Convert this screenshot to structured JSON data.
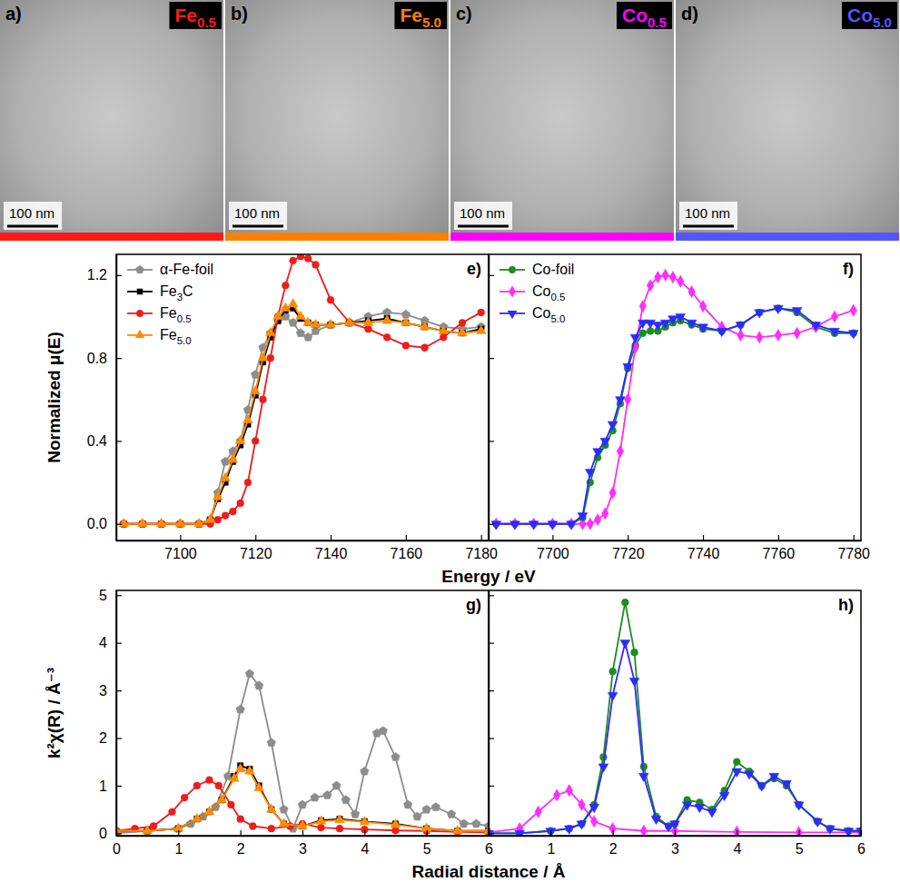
{
  "images": [
    {
      "panel": "a)",
      "label": "Fe0.5",
      "color": "#ff1a1a",
      "scale_bar": "100 nm"
    },
    {
      "panel": "b)",
      "label": "Fe5.0",
      "color": "#ff8000",
      "scale_bar": "100 nm"
    },
    {
      "panel": "c)",
      "label": "Co0.5",
      "color": "#ff00ff",
      "scale_bar": "100 nm"
    },
    {
      "panel": "d)",
      "label": "Co5.0",
      "color": "#5555ff",
      "scale_bar": "100 nm"
    }
  ],
  "chart_data": [
    {
      "type": "line",
      "title": "e)",
      "xlabel": "Energy / eV",
      "ylabel": "Normalized μ(E)",
      "xlim": [
        7083,
        7182
      ],
      "xticks": [
        7100,
        7120,
        7140,
        7160,
        7180
      ],
      "ylim": [
        -0.08,
        1.3
      ],
      "yticks": [
        {
          "value": 0,
          "label": "0.0"
        },
        0.4,
        0.8,
        1.2
      ],
      "grid": false,
      "legend": "upper left",
      "series": [
        {
          "name": "α-Fe-foil",
          "color": "#8c8c8c",
          "marker": "pentagon",
          "line_style": "solid",
          "x": [
            7085,
            7090,
            7095,
            7100,
            7105,
            7108,
            7110,
            7112,
            7114,
            7116,
            7118,
            7120,
            7122,
            7124,
            7126,
            7128,
            7130,
            7132,
            7134,
            7136,
            7140,
            7145,
            7150,
            7155,
            7160,
            7165,
            7170,
            7175,
            7180
          ],
          "values": [
            0,
            0,
            0,
            0,
            0,
            0.02,
            0.15,
            0.3,
            0.35,
            0.4,
            0.55,
            0.72,
            0.85,
            0.92,
            0.98,
            1.0,
            0.97,
            0.92,
            0.9,
            0.93,
            0.96,
            0.97,
            1.0,
            1.02,
            1.01,
            0.98,
            0.95,
            0.94,
            0.95
          ]
        },
        {
          "name": "Fe3C",
          "color": "#000000",
          "marker": "square",
          "line_style": "solid",
          "x": [
            7085,
            7090,
            7095,
            7100,
            7105,
            7108,
            7110,
            7112,
            7114,
            7116,
            7118,
            7120,
            7122,
            7124,
            7126,
            7128,
            7130,
            7132,
            7134,
            7136,
            7140,
            7145,
            7150,
            7155,
            7160,
            7165,
            7170,
            7175,
            7180
          ],
          "values": [
            0,
            0,
            0,
            0,
            0,
            0.02,
            0.12,
            0.2,
            0.3,
            0.38,
            0.48,
            0.62,
            0.78,
            0.9,
            0.98,
            1.03,
            1.04,
            0.99,
            0.97,
            0.96,
            0.96,
            0.97,
            0.98,
            0.99,
            0.97,
            0.95,
            0.93,
            0.92,
            0.94
          ]
        },
        {
          "name": "Fe0.5",
          "color": "#ee1c1c",
          "marker": "circle",
          "line_style": "solid",
          "x": [
            7085,
            7090,
            7095,
            7100,
            7105,
            7108,
            7110,
            7112,
            7114,
            7116,
            7118,
            7120,
            7122,
            7124,
            7126,
            7128,
            7130,
            7132,
            7134,
            7136,
            7140,
            7145,
            7150,
            7155,
            7160,
            7165,
            7170,
            7175,
            7180
          ],
          "values": [
            0,
            0,
            0,
            0,
            0,
            0,
            0.02,
            0.04,
            0.06,
            0.1,
            0.2,
            0.4,
            0.6,
            0.8,
            1.0,
            1.15,
            1.27,
            1.29,
            1.28,
            1.25,
            1.08,
            0.97,
            0.94,
            0.9,
            0.86,
            0.85,
            0.9,
            0.97,
            1.02
          ]
        },
        {
          "name": "Fe5.0",
          "color": "#ff8c00",
          "marker": "triangle",
          "line_style": "solid",
          "x": [
            7085,
            7090,
            7095,
            7100,
            7105,
            7108,
            7110,
            7112,
            7114,
            7116,
            7118,
            7120,
            7122,
            7124,
            7126,
            7128,
            7130,
            7132,
            7134,
            7136,
            7140,
            7145,
            7150,
            7155,
            7160,
            7165,
            7170,
            7175,
            7180
          ],
          "values": [
            0,
            0,
            0,
            0,
            0,
            0.02,
            0.13,
            0.22,
            0.31,
            0.4,
            0.5,
            0.64,
            0.8,
            0.92,
            1.0,
            1.04,
            1.06,
            1.0,
            0.97,
            0.96,
            0.96,
            0.97,
            0.97,
            0.98,
            0.97,
            0.95,
            0.93,
            0.92,
            0.93
          ]
        }
      ]
    },
    {
      "type": "line",
      "title": "f)",
      "xlim": [
        7683,
        7782
      ],
      "xticks": [
        7700,
        7720,
        7740,
        7760,
        7780
      ],
      "ylim": [
        -0.08,
        1.3
      ],
      "yticks": [
        {
          "value": 0,
          "label": "0.0"
        },
        0.4,
        0.8,
        1.2
      ],
      "grid": false,
      "legend": "upper left",
      "tick_labels": "x",
      "series": [
        {
          "name": "Co-foil",
          "color": "#1e8c1e",
          "marker": "circle",
          "line_style": "solid",
          "x": [
            7685,
            7690,
            7695,
            7700,
            7705,
            7708,
            7710,
            7712,
            7714,
            7716,
            7718,
            7720,
            7722,
            7724,
            7726,
            7728,
            7730,
            7732,
            7734,
            7737,
            7740,
            7745,
            7750,
            7755,
            7760,
            7765,
            7770,
            7775,
            7780
          ],
          "values": [
            0,
            0,
            0,
            0,
            0,
            0.03,
            0.2,
            0.32,
            0.38,
            0.45,
            0.58,
            0.75,
            0.86,
            0.92,
            0.93,
            0.93,
            0.95,
            0.97,
            0.98,
            0.96,
            0.94,
            0.93,
            0.96,
            1.02,
            1.04,
            1.02,
            0.95,
            0.92,
            0.92
          ]
        },
        {
          "name": "Co0.5",
          "color": "#ff2bff",
          "marker": "diamond",
          "line_style": "solid",
          "x": [
            7685,
            7690,
            7695,
            7700,
            7705,
            7708,
            7710,
            7712,
            7714,
            7716,
            7718,
            7720,
            7722,
            7724,
            7726,
            7728,
            7730,
            7732,
            7734,
            7737,
            7740,
            7745,
            7750,
            7755,
            7760,
            7765,
            7770,
            7775,
            7780
          ],
          "values": [
            0,
            0,
            0,
            0,
            0,
            0,
            0,
            0.02,
            0.05,
            0.15,
            0.35,
            0.6,
            0.85,
            1.05,
            1.15,
            1.19,
            1.2,
            1.19,
            1.17,
            1.12,
            1.05,
            0.95,
            0.91,
            0.9,
            0.91,
            0.92,
            0.95,
            1.0,
            1.03
          ]
        },
        {
          "name": "Co5.0",
          "color": "#2b2bff",
          "marker": "triangle-down",
          "line_style": "solid",
          "x": [
            7685,
            7690,
            7695,
            7700,
            7705,
            7708,
            7710,
            7712,
            7714,
            7716,
            7718,
            7720,
            7722,
            7724,
            7726,
            7728,
            7730,
            7732,
            7734,
            7737,
            7740,
            7745,
            7750,
            7755,
            7760,
            7765,
            7770,
            7775,
            7780
          ],
          "values": [
            0,
            0,
            0,
            0,
            0,
            0.04,
            0.25,
            0.35,
            0.4,
            0.48,
            0.6,
            0.76,
            0.9,
            0.97,
            0.97,
            0.96,
            0.97,
            0.99,
            1.0,
            0.97,
            0.95,
            0.93,
            0.96,
            1.02,
            1.04,
            1.03,
            0.96,
            0.93,
            0.92
          ]
        }
      ]
    },
    {
      "type": "line",
      "title": "g)",
      "xlabel": "Radial distance / Å",
      "ylabel": "k²χ(R) / Å⁻³",
      "xlim": [
        0,
        6
      ],
      "xticks": [
        0,
        1,
        2,
        3,
        4,
        5,
        6
      ],
      "ylim": [
        -0.05,
        5.1
      ],
      "yticks": [
        0,
        1,
        2,
        3,
        4,
        5
      ],
      "grid": false,
      "series": [
        {
          "color": "#8c8c8c",
          "marker": "pentagon",
          "line_style": "solid",
          "x": [
            0,
            0.5,
            1.0,
            1.2,
            1.4,
            1.6,
            1.8,
            2.0,
            2.15,
            2.3,
            2.5,
            2.7,
            2.85,
            3.0,
            3.2,
            3.4,
            3.55,
            3.7,
            3.85,
            4.0,
            4.2,
            4.3,
            4.5,
            4.7,
            4.85,
            5.0,
            5.15,
            5.4,
            5.6,
            5.8,
            6.0
          ],
          "values": [
            0,
            0.05,
            0.1,
            0.2,
            0.35,
            0.55,
            1.2,
            2.6,
            3.35,
            3.1,
            1.9,
            0.5,
            0.1,
            0.6,
            0.75,
            0.8,
            1.0,
            0.7,
            0.4,
            1.3,
            2.1,
            2.15,
            1.6,
            0.6,
            0.35,
            0.5,
            0.55,
            0.4,
            0.2,
            0.2,
            0.15
          ]
        },
        {
          "color": "#000000",
          "marker": "square",
          "line_style": "solid",
          "x": [
            0,
            0.5,
            1.0,
            1.3,
            1.5,
            1.7,
            1.9,
            2.0,
            2.15,
            2.3,
            2.5,
            2.7,
            3.0,
            3.3,
            3.6,
            4.0,
            4.5,
            5.0,
            5.5,
            6.0
          ],
          "values": [
            0.05,
            0.05,
            0.1,
            0.3,
            0.45,
            0.7,
            1.2,
            1.42,
            1.35,
            1.0,
            0.5,
            0.2,
            0.15,
            0.27,
            0.3,
            0.25,
            0.2,
            0.1,
            0.05,
            0.05
          ]
        },
        {
          "color": "#ee1c1c",
          "marker": "circle",
          "line_style": "solid",
          "x": [
            0,
            0.3,
            0.6,
            0.9,
            1.1,
            1.3,
            1.5,
            1.65,
            1.85,
            2.0,
            2.2,
            2.5,
            2.8,
            3.0,
            3.3,
            3.6,
            4.0,
            4.5,
            5.0,
            5.5,
            6.0
          ],
          "values": [
            0.05,
            0.1,
            0.15,
            0.45,
            0.75,
            1.0,
            1.12,
            1.0,
            0.6,
            0.3,
            0.15,
            0.1,
            0.15,
            0.2,
            0.12,
            0.1,
            0.08,
            0.06,
            0.05,
            0.03,
            0.02
          ]
        },
        {
          "color": "#ff8c00",
          "marker": "triangle",
          "line_style": "solid",
          "x": [
            0,
            0.5,
            1.0,
            1.3,
            1.5,
            1.7,
            1.9,
            2.0,
            2.15,
            2.3,
            2.5,
            2.7,
            3.0,
            3.3,
            3.6,
            4.0,
            4.5,
            5.0,
            5.5,
            6.0
          ],
          "values": [
            0.05,
            0.05,
            0.1,
            0.3,
            0.45,
            0.7,
            1.15,
            1.35,
            1.3,
            0.95,
            0.5,
            0.2,
            0.15,
            0.25,
            0.28,
            0.24,
            0.18,
            0.1,
            0.05,
            0.05
          ]
        }
      ]
    },
    {
      "type": "line",
      "title": "h)",
      "xlim": [
        0,
        6
      ],
      "xticks": [
        1,
        2,
        3,
        4,
        5,
        6
      ],
      "ylim": [
        -0.05,
        5.1
      ],
      "yticks": [
        0,
        1,
        2,
        3,
        4,
        5
      ],
      "grid": false,
      "tick_labels": "x",
      "series": [
        {
          "color": "#1e8c1e",
          "marker": "circle",
          "line_style": "solid",
          "x": [
            0,
            0.5,
            1.0,
            1.3,
            1.5,
            1.7,
            1.85,
            2.0,
            2.2,
            2.35,
            2.5,
            2.7,
            2.9,
            3.0,
            3.2,
            3.4,
            3.6,
            3.8,
            4.0,
            4.2,
            4.4,
            4.6,
            4.8,
            5.0,
            5.3,
            5.5,
            5.8,
            6.0
          ],
          "values": [
            0,
            0,
            0.05,
            0.1,
            0.2,
            0.6,
            1.6,
            3.4,
            4.85,
            3.8,
            1.4,
            0.35,
            0.15,
            0.2,
            0.7,
            0.65,
            0.5,
            0.9,
            1.5,
            1.3,
            1.0,
            1.15,
            1.0,
            0.6,
            0.25,
            0.1,
            0.05,
            0.05
          ]
        },
        {
          "color": "#ff2bff",
          "marker": "diamond",
          "line_style": "solid",
          "x": [
            0,
            0.5,
            0.8,
            1.1,
            1.3,
            1.5,
            1.7,
            2.0,
            2.5,
            3.0,
            4.0,
            5.0,
            6.0
          ],
          "values": [
            0.02,
            0.1,
            0.45,
            0.8,
            0.9,
            0.6,
            0.25,
            0.1,
            0.05,
            0.05,
            0.03,
            0.02,
            0.02
          ]
        },
        {
          "color": "#2b2bff",
          "marker": "triangle-down",
          "line_style": "solid",
          "x": [
            0,
            0.5,
            1.0,
            1.3,
            1.5,
            1.7,
            1.85,
            2.0,
            2.2,
            2.35,
            2.5,
            2.7,
            2.9,
            3.0,
            3.2,
            3.4,
            3.6,
            3.8,
            4.0,
            4.2,
            4.4,
            4.6,
            4.8,
            5.0,
            5.3,
            5.5,
            5.8,
            6.0
          ],
          "values": [
            0,
            0,
            0.05,
            0.1,
            0.2,
            0.55,
            1.4,
            2.9,
            4.0,
            3.2,
            1.2,
            0.3,
            0.15,
            0.2,
            0.6,
            0.55,
            0.45,
            0.8,
            1.3,
            1.25,
            1.0,
            1.2,
            1.05,
            0.6,
            0.25,
            0.1,
            0.05,
            0.05
          ]
        }
      ]
    }
  ]
}
